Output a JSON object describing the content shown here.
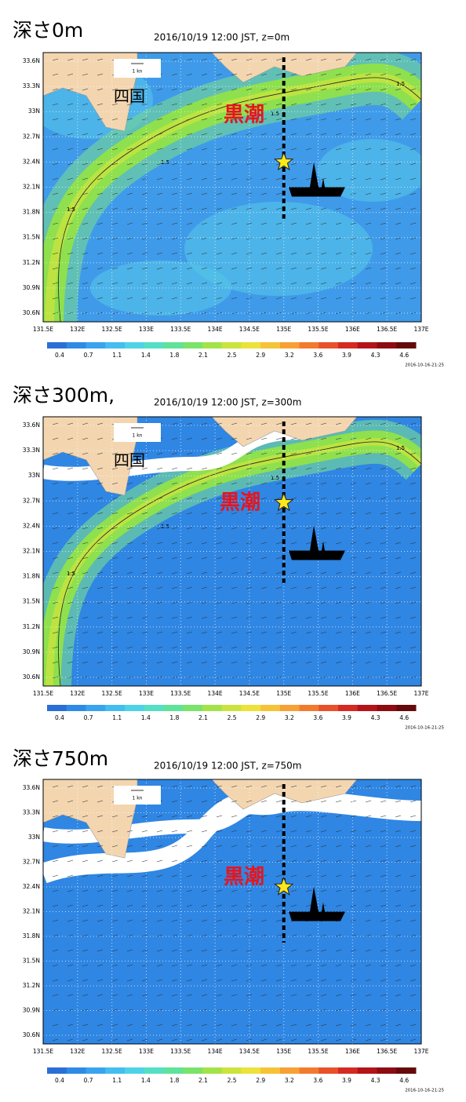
{
  "panels": [
    {
      "heading": "深さ0m",
      "subtitle": "2016/10/19 12:00 JST, z=0m",
      "region_label": "四国",
      "current_label": "黒潮",
      "scale_label": "1 kn",
      "contour_labels": [
        1.5,
        1.5,
        1.5,
        1.5
      ]
    },
    {
      "heading": "深さ300m,",
      "subtitle": "2016/10/19 12:00 JST, z=300m",
      "region_label": "四国",
      "current_label": "黒潮",
      "scale_label": "1 kn",
      "contour_labels": [
        1.5,
        1.5,
        1.5,
        1.5
      ]
    },
    {
      "heading": "深さ750m",
      "subtitle": "2016/10/19 12:00 JST, z=750m",
      "current_label": "黒潮",
      "scale_label": "1 kn"
    }
  ],
  "lat_ticks": [
    "33.6N",
    "33.3N",
    "33N",
    "32.7N",
    "32.4N",
    "32.1N",
    "31.8N",
    "31.5N",
    "31.2N",
    "30.9N",
    "30.6N"
  ],
  "lon_ticks": [
    "131.5E",
    "132E",
    "132.5E",
    "133E",
    "133.5E",
    "134E",
    "134.5E",
    "135E",
    "135.5E",
    "136E",
    "136.5E",
    "137E"
  ],
  "colorbar_labels": [
    0.4,
    0.7,
    1.1,
    1.4,
    1.8,
    2.1,
    2.5,
    2.9,
    3.2,
    3.6,
    3.9,
    4.3,
    4.6
  ],
  "timestamp": "2016-10-16-21:25"
}
